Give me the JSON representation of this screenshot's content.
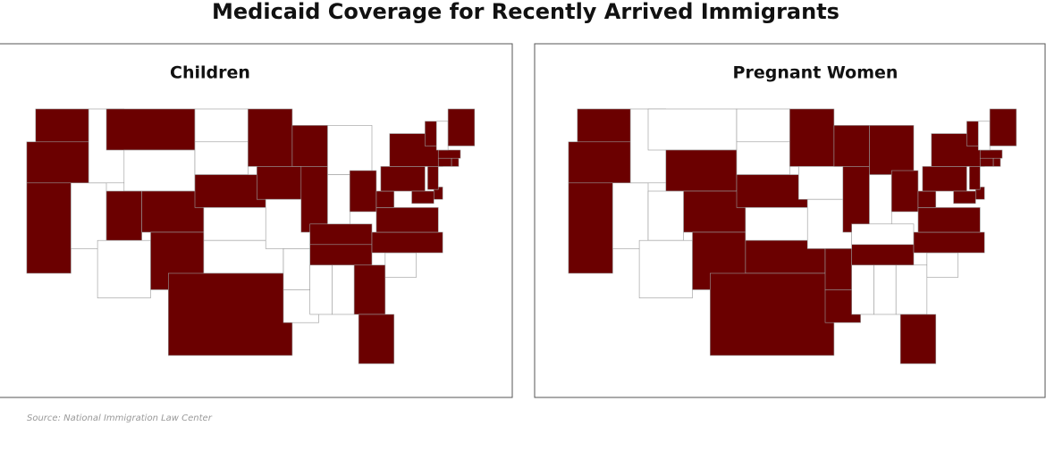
{
  "title": "Medicaid Coverage for Recently Arrived Immigrants",
  "covered_color": "#6b0000",
  "uncovered_color": "#ffffff",
  "panels": [
    {
      "title": "Children",
      "covered": [
        "WA",
        "OR",
        "CA",
        "MT",
        "UT",
        "CO",
        "NM",
        "TX",
        "NE",
        "MN",
        "WI",
        "IA",
        "IL",
        "OH",
        "KY",
        "TN",
        "VA",
        "WV",
        "NC",
        "GA",
        "FL",
        "PA",
        "NY",
        "NJ",
        "DE",
        "MD",
        "CT",
        "MA",
        "RI",
        "VT",
        "ME"
      ]
    },
    {
      "title": "Pregnant Women",
      "covered": [
        "WA",
        "OR",
        "CA",
        "WY",
        "CO",
        "NM",
        "TX",
        "OK",
        "AR",
        "LA",
        "NE",
        "MN",
        "WI",
        "MI",
        "IL",
        "OH",
        "TN",
        "FL",
        "NC",
        "VA",
        "WV",
        "PA",
        "NY",
        "NJ",
        "DE",
        "MD",
        "CT",
        "MA",
        "RI",
        "VT",
        "ME"
      ]
    }
  ],
  "source": "Source: National Immigration Law Center"
}
